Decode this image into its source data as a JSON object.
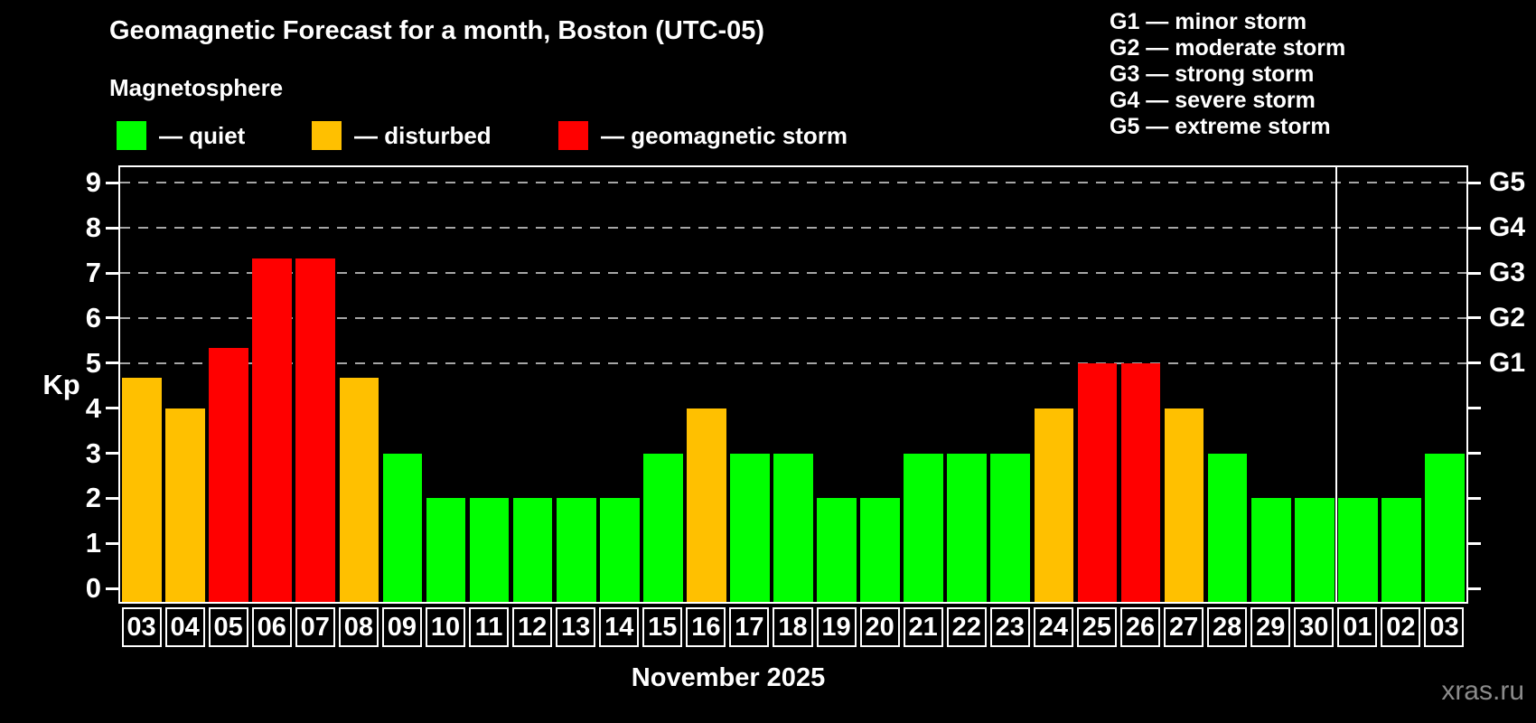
{
  "header": {
    "title": "Geomagnetic Forecast for a month, Boston (UTC-05)",
    "subtitle": "Magnetosphere",
    "legend": [
      {
        "name": "quiet",
        "label": "— quiet",
        "color": "#00ff00"
      },
      {
        "name": "disturbed",
        "label": "— disturbed",
        "color": "#ffc000"
      },
      {
        "name": "storm",
        "label": "— geomagnetic storm",
        "color": "#ff0000"
      }
    ],
    "g_legend": [
      "G1 — minor storm",
      "G2 — moderate storm",
      "G3 — strong storm",
      "G4 — severe storm",
      "G5 — extreme storm"
    ]
  },
  "chart_data": {
    "type": "bar",
    "title": "Geomagnetic Forecast for a month, Boston (UTC-05)",
    "xlabel": "November 2025",
    "ylabel": "Kp",
    "ylim": [
      -0.3,
      9.35
    ],
    "yticks": [
      0,
      1,
      2,
      3,
      4,
      5,
      6,
      7,
      8,
      9
    ],
    "grid_levels": [
      5,
      6,
      7,
      8,
      9
    ],
    "grid_style": "dashed",
    "legend_position": "top",
    "right_axis": [
      {
        "label": "G1",
        "kp": 5
      },
      {
        "label": "G2",
        "kp": 6
      },
      {
        "label": "G3",
        "kp": 7
      },
      {
        "label": "G4",
        "kp": 8
      },
      {
        "label": "G5",
        "kp": 9
      }
    ],
    "categories": [
      "03",
      "04",
      "05",
      "06",
      "07",
      "08",
      "09",
      "10",
      "11",
      "12",
      "13",
      "14",
      "15",
      "16",
      "17",
      "18",
      "19",
      "20",
      "21",
      "22",
      "23",
      "24",
      "25",
      "26",
      "27",
      "28",
      "29",
      "30",
      "01",
      "02",
      "03"
    ],
    "values": [
      4.67,
      4,
      5.33,
      7.33,
      7.33,
      4.67,
      3,
      2,
      2,
      2,
      2,
      2,
      3,
      4,
      3,
      3,
      2,
      2,
      3,
      3,
      3,
      4,
      5,
      5,
      4,
      3,
      2,
      2,
      2,
      2,
      3
    ],
    "statuses": [
      "disturbed",
      "disturbed",
      "storm",
      "storm",
      "storm",
      "disturbed",
      "quiet",
      "quiet",
      "quiet",
      "quiet",
      "quiet",
      "quiet",
      "quiet",
      "disturbed",
      "quiet",
      "quiet",
      "quiet",
      "quiet",
      "quiet",
      "quiet",
      "quiet",
      "disturbed",
      "storm",
      "storm",
      "disturbed",
      "quiet",
      "quiet",
      "quiet",
      "quiet",
      "quiet",
      "quiet"
    ],
    "status_colors": {
      "quiet": "#00ff00",
      "disturbed": "#ffc000",
      "storm": "#ff0000"
    },
    "month_separator_after_index": 27
  },
  "footer": {
    "caption": "November 2025",
    "watermark": "xras.ru"
  }
}
